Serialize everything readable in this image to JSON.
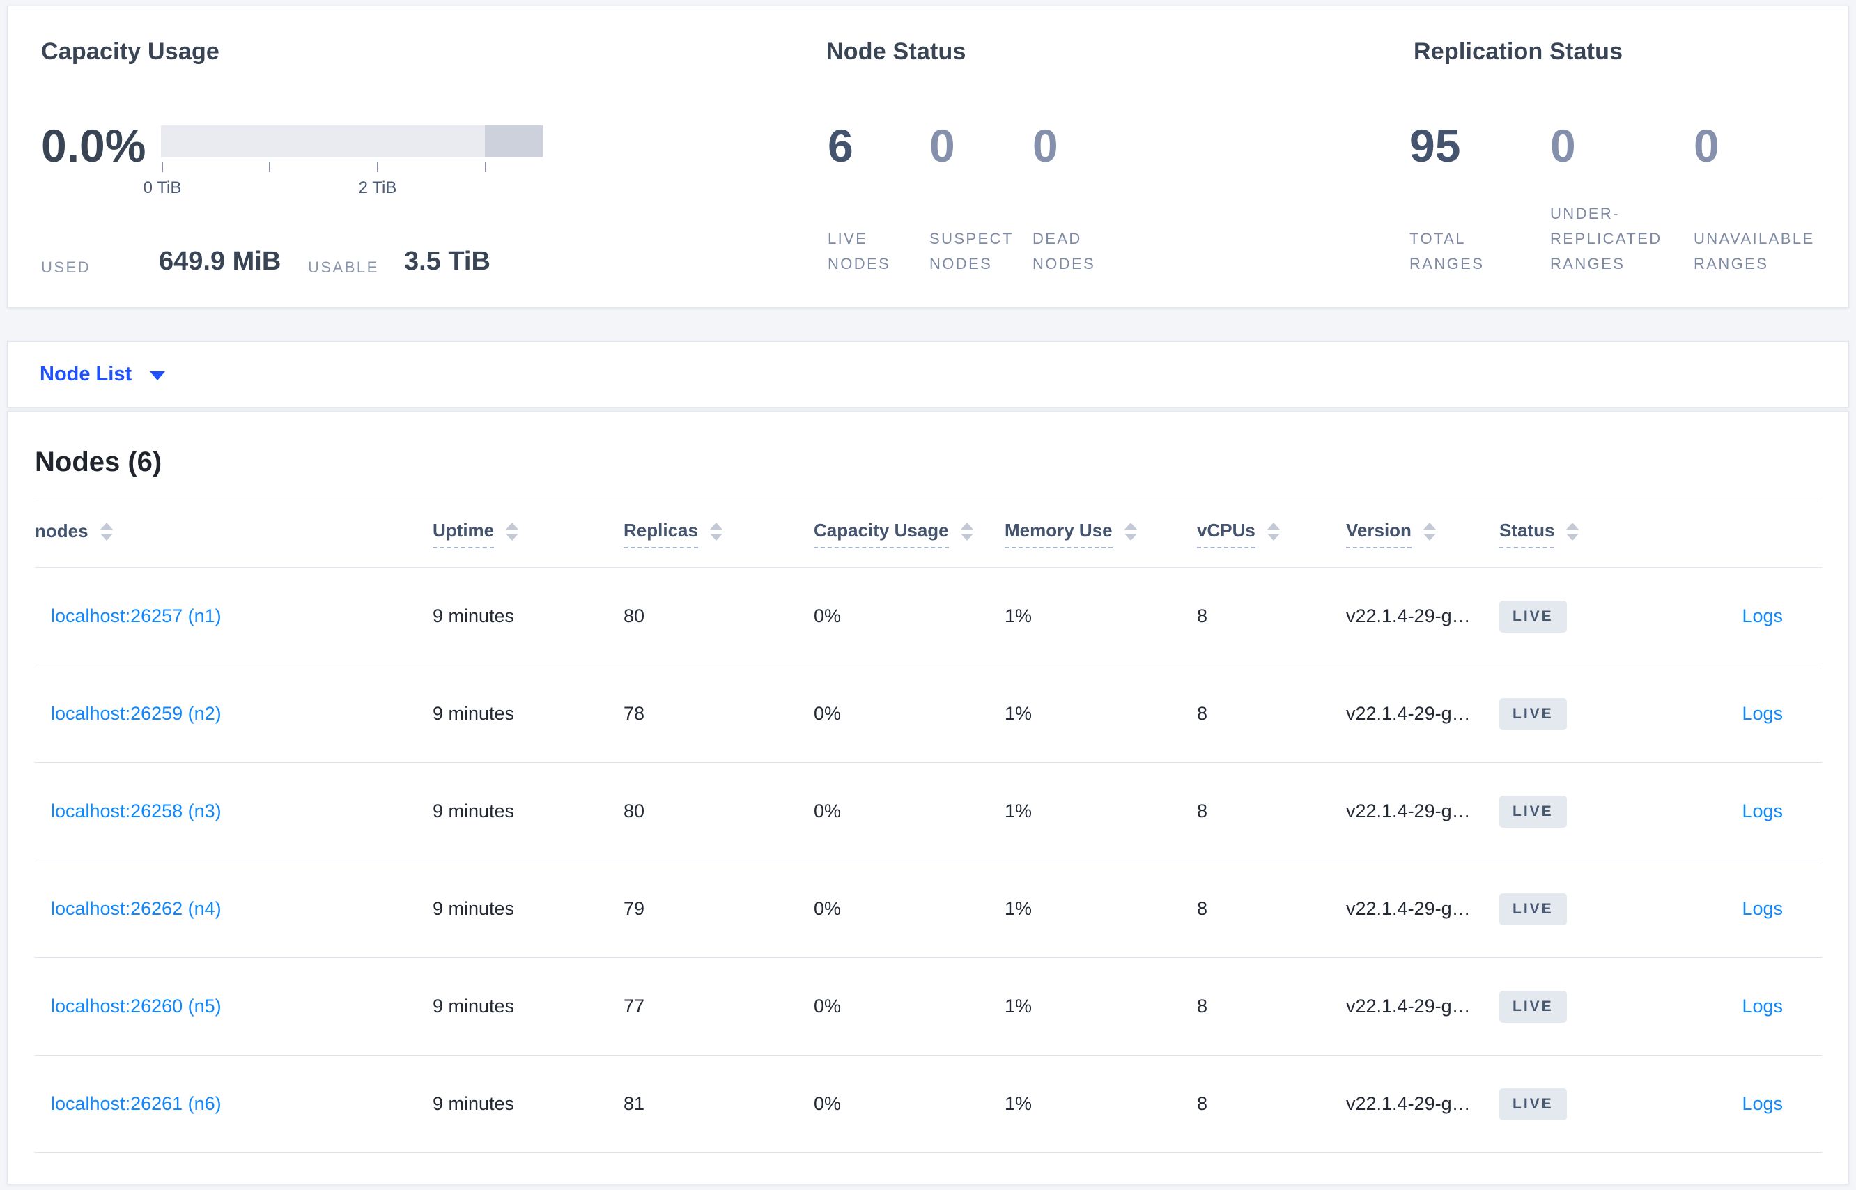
{
  "capacity": {
    "title": "Capacity Usage",
    "percent": "0.0%",
    "axis": {
      "tick_labels": [
        "0 TiB",
        "2 TiB"
      ],
      "ticks_tib": [
        0,
        1,
        2,
        3
      ],
      "max_tib": 3.5
    },
    "used_label": "USED",
    "used_value": "649.9 MiB",
    "usable_label": "USABLE",
    "usable_value": "3.5 TiB"
  },
  "node_status": {
    "title": "Node Status",
    "stats": [
      {
        "value": "6",
        "label": "LIVE NODES"
      },
      {
        "value": "0",
        "label": "SUSPECT NODES"
      },
      {
        "value": "0",
        "label": "DEAD NODES"
      }
    ]
  },
  "replication_status": {
    "title": "Replication Status",
    "stats": [
      {
        "value": "95",
        "label": "TOTAL RANGES"
      },
      {
        "value": "0",
        "label": "UNDER-REPLICATED RANGES"
      },
      {
        "value": "0",
        "label": "UNAVAILABLE RANGES"
      }
    ]
  },
  "view_selector": {
    "label": "Node List"
  },
  "table": {
    "heading": "Nodes (6)",
    "columns": [
      {
        "label": "nodes",
        "key": "node",
        "sortable": true,
        "underlined": false
      },
      {
        "label": "Uptime",
        "key": "uptime",
        "sortable": true,
        "underlined": true
      },
      {
        "label": "Replicas",
        "key": "replicas",
        "sortable": true,
        "underlined": true
      },
      {
        "label": "Capacity Usage",
        "key": "capacity_usage",
        "sortable": true,
        "underlined": true
      },
      {
        "label": "Memory Use",
        "key": "memory_use",
        "sortable": true,
        "underlined": true
      },
      {
        "label": "vCPUs",
        "key": "vcpus",
        "sortable": true,
        "underlined": true
      },
      {
        "label": "Version",
        "key": "version",
        "sortable": true,
        "underlined": true
      },
      {
        "label": "Status",
        "key": "status",
        "sortable": true,
        "underlined": true
      },
      {
        "label": "",
        "key": "logs",
        "sortable": false,
        "underlined": false
      }
    ],
    "rows": [
      {
        "node": "localhost:26257 (n1)",
        "uptime": "9 minutes",
        "replicas": "80",
        "capacity_usage": "0%",
        "memory_use": "1%",
        "vcpus": "8",
        "version": "v22.1.4-29-g…",
        "status": "LIVE",
        "logs": "Logs"
      },
      {
        "node": "localhost:26259 (n2)",
        "uptime": "9 minutes",
        "replicas": "78",
        "capacity_usage": "0%",
        "memory_use": "1%",
        "vcpus": "8",
        "version": "v22.1.4-29-g…",
        "status": "LIVE",
        "logs": "Logs"
      },
      {
        "node": "localhost:26258 (n3)",
        "uptime": "9 minutes",
        "replicas": "80",
        "capacity_usage": "0%",
        "memory_use": "1%",
        "vcpus": "8",
        "version": "v22.1.4-29-g…",
        "status": "LIVE",
        "logs": "Logs"
      },
      {
        "node": "localhost:26262 (n4)",
        "uptime": "9 minutes",
        "replicas": "79",
        "capacity_usage": "0%",
        "memory_use": "1%",
        "vcpus": "8",
        "version": "v22.1.4-29-g…",
        "status": "LIVE",
        "logs": "Logs"
      },
      {
        "node": "localhost:26260 (n5)",
        "uptime": "9 minutes",
        "replicas": "77",
        "capacity_usage": "0%",
        "memory_use": "1%",
        "vcpus": "8",
        "version": "v22.1.4-29-g…",
        "status": "LIVE",
        "logs": "Logs"
      },
      {
        "node": "localhost:26261 (n6)",
        "uptime": "9 minutes",
        "replicas": "81",
        "capacity_usage": "0%",
        "memory_use": "1%",
        "vcpus": "8",
        "version": "v22.1.4-29-g…",
        "status": "LIVE",
        "logs": "Logs"
      }
    ]
  },
  "colors": {
    "page_background": "#f3f5f9",
    "accent_blue": "#1f51ff",
    "link_blue": "#0e87ff",
    "text_dark": "#394455",
    "muted_label": "#7e89a3",
    "badge_background": "#e4e8ef",
    "bar_track": "#e9ebf1",
    "bar_segment": "#cdd1db"
  }
}
